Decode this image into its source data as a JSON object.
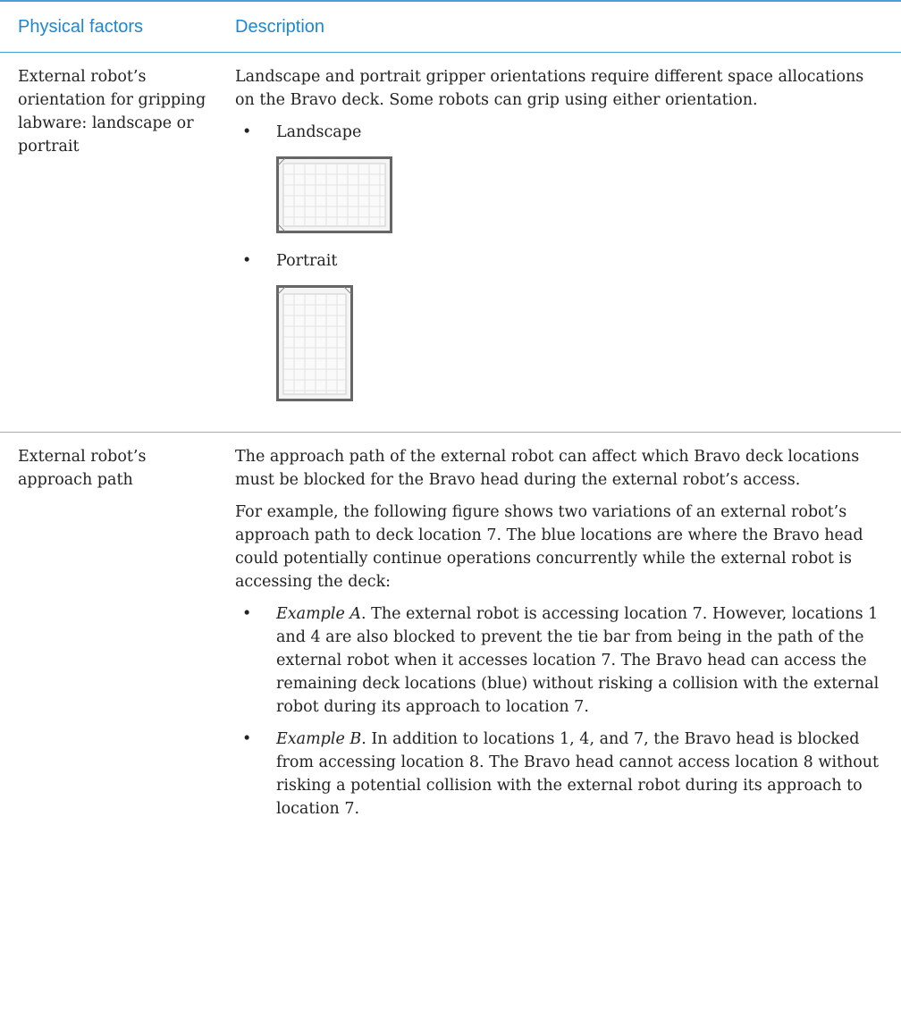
{
  "table": {
    "headers": [
      "Physical factors",
      "Description"
    ],
    "rows": [
      {
        "factor": "External robot’s orientation for gripping labware: landscape or portrait",
        "paragraphs": [
          "Landscape and portrait gripper orientations require different space allocations on the Bravo deck. Some robots can grip using either orientation."
        ],
        "bullets": [
          {
            "text": "Landscape"
          },
          {
            "text": "Portrait"
          }
        ]
      },
      {
        "factor": "External robot’s approach path",
        "paragraphs": [
          "The approach path of the external robot can affect which Bravo deck locations must be blocked for the Bravo head during the external robot’s access.",
          "For example, the following figure shows two variations of an external robot’s approach path to deck location 7. The blue locations are where the Bravo head could potentially continue operations concurrently while the external robot is accessing the deck:"
        ],
        "bullets": [
          {
            "label": "Example A",
            "text": ". The external robot is accessing location 7. However, locations 1 and 4 are also blocked to prevent the tie bar from being in the path of the external robot when it accesses location 7. The Bravo head can access the remaining deck locations (blue) without risking a collision with the external robot during its approach to location 7."
          },
          {
            "label": "Example B",
            "text": ". In addition to locations 1, 4, and 7, the Bravo head is blocked from accessing location 8. The Bravo head cannot access location 8 without risking a potential collision with the external robot during its approach to location 7."
          }
        ]
      }
    ]
  }
}
